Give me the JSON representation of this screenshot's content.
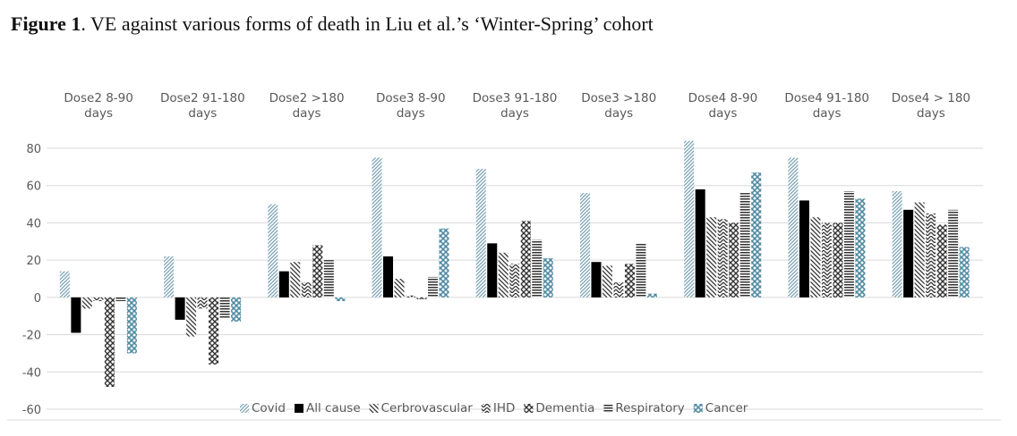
{
  "caption": {
    "label": "Figure 1",
    "text": ". VE against various forms of death in Liu et al.’s ‘Winter-Spring’ cohort"
  },
  "chart_data": {
    "type": "bar",
    "categories": [
      [
        "Dose2 8-90",
        "days"
      ],
      [
        "Dose2 91-180",
        "days"
      ],
      [
        "Dose2 >180",
        "days"
      ],
      [
        "Dose3 8-90",
        "days"
      ],
      [
        "Dose3 91-180",
        "days"
      ],
      [
        "Dose3 >180",
        "days"
      ],
      [
        "Dose4 8-90",
        "days"
      ],
      [
        "Dose4 91-180",
        "days"
      ],
      [
        "Dose4 > 180",
        "days"
      ]
    ],
    "ylim": [
      -60,
      80
    ],
    "yticks": [
      80,
      60,
      40,
      20,
      0,
      -20,
      -40,
      -60
    ],
    "grid": true,
    "legend_position": "bottom",
    "series": [
      {
        "name": "Covid",
        "color": "#7ca3b4",
        "pattern": "diag-up",
        "values": [
          14,
          22,
          50,
          75,
          69,
          56,
          84,
          75,
          57
        ]
      },
      {
        "name": "All cause",
        "color": "#000000",
        "pattern": "solid",
        "values": [
          -19,
          -12,
          14,
          22,
          29,
          19,
          58,
          52,
          47
        ]
      },
      {
        "name": "Cerbrovascular",
        "color": "#333333",
        "pattern": "diag-down",
        "values": [
          -6,
          -21,
          19,
          10,
          24,
          17,
          43,
          43,
          51
        ]
      },
      {
        "name": "IHD",
        "color": "#333333",
        "pattern": "wave",
        "values": [
          -2,
          -6,
          8,
          1,
          18,
          8,
          42,
          40,
          45
        ]
      },
      {
        "name": "Dementia",
        "color": "#333333",
        "pattern": "cross",
        "values": [
          -48,
          -36,
          28,
          -1,
          41,
          18,
          40,
          40,
          39
        ]
      },
      {
        "name": "Respiratory",
        "color": "#333333",
        "pattern": "vertical",
        "values": [
          -2,
          -11,
          20,
          11,
          31,
          29,
          56,
          57,
          47
        ]
      },
      {
        "name": "Cancer",
        "color": "#4f8aa2",
        "pattern": "cross-blue",
        "values": [
          -30,
          -13,
          -2,
          37,
          21,
          2,
          67,
          53,
          27
        ]
      }
    ]
  }
}
